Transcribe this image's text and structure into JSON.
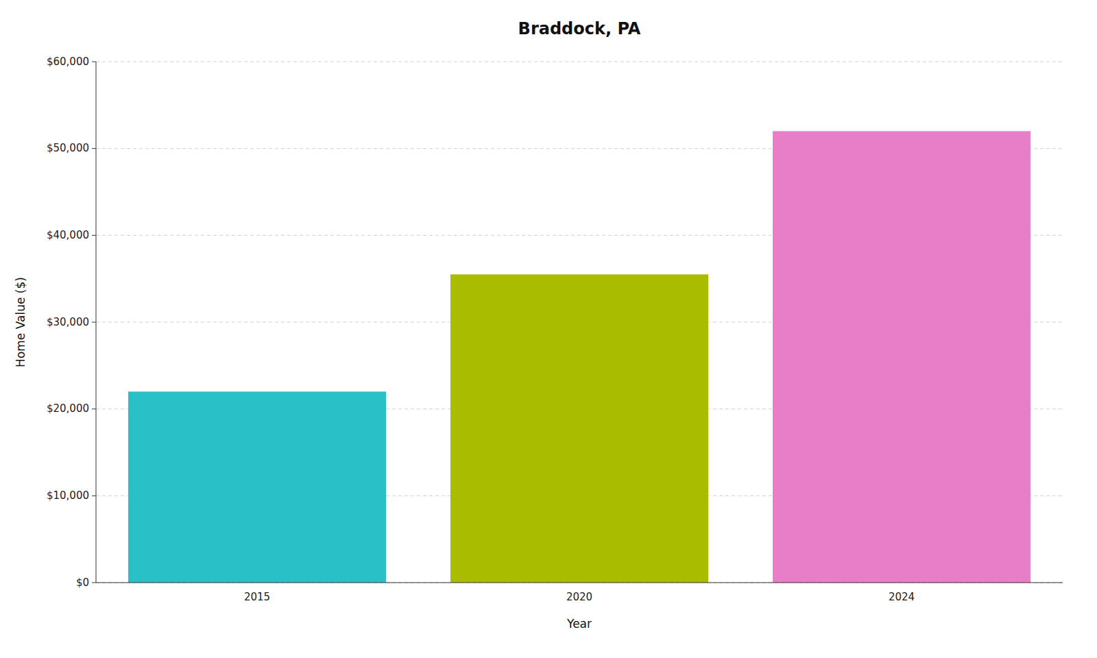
{
  "chart_data": {
    "type": "bar",
    "title": "Braddock, PA",
    "xlabel": "Year",
    "ylabel": "Home Value ($)",
    "categories": [
      "2015",
      "2020",
      "2024"
    ],
    "values": [
      22000,
      35500,
      52000
    ],
    "colors": [
      "#29C0C7",
      "#AABC00",
      "#E87EC7"
    ],
    "ylim": [
      0,
      60000
    ],
    "yticks": [
      {
        "value": 0,
        "label": "$0"
      },
      {
        "value": 10000,
        "label": "$10,000"
      },
      {
        "value": 20000,
        "label": "$20,000"
      },
      {
        "value": 30000,
        "label": "$30,000"
      },
      {
        "value": 40000,
        "label": "$40,000"
      },
      {
        "value": 50000,
        "label": "$50,000"
      },
      {
        "value": 60000,
        "label": "$60,000"
      }
    ],
    "grid": true
  }
}
